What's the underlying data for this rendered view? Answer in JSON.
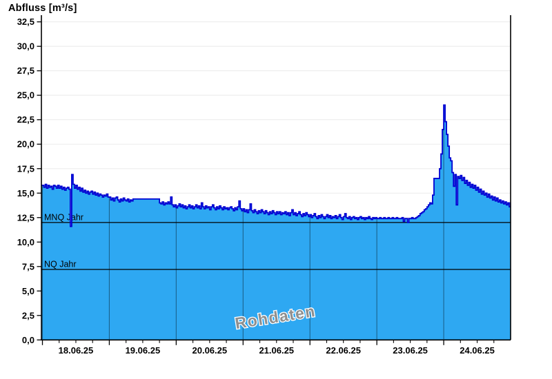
{
  "chart": {
    "title": "Abfluss [m³/s]",
    "watermark": "Rohdaten"
  },
  "colors": {
    "area_fill": "#2ea8f2",
    "curve_line": "#0000d2",
    "grid_line": "#ececec",
    "day_line": "rgba(0,0,0,0.42)",
    "axis": "#000000",
    "ref_line": "#000000",
    "watermark_fill": "#8f8f8f",
    "watermark_stroke": "#ffffff",
    "text": "#000000"
  },
  "chart_data": {
    "type": "area",
    "title": "Abfluss [m³/s]",
    "ylabel": "Abfluss [m³/s]",
    "xlabel": "",
    "grid": "horizontal",
    "legend": "none",
    "ylim": [
      0,
      33
    ],
    "x_range_hours": [
      -0.5,
      169
    ],
    "x_day_width_hours": 24,
    "x_tick_labels": [
      "18.06.25",
      "19.06.25",
      "20.06.25",
      "21.06.25",
      "22.06.25",
      "23.06.25",
      "24.06.25"
    ],
    "y_tick_values": [
      0,
      2.5,
      5,
      7.5,
      10,
      12.5,
      15,
      17.5,
      20,
      22.5,
      25,
      27.5,
      30,
      32.5
    ],
    "y_tick_labels": [
      "0,0",
      "2,5",
      "5,0",
      "7,5",
      "10,0",
      "12,5",
      "15,0",
      "17,5",
      "20,0",
      "22,5",
      "25,0",
      "27,5",
      "30,0",
      "32,5"
    ],
    "reference_lines": [
      {
        "label": "MNQ Jahr",
        "value": 12.0
      },
      {
        "label": "NQ Jahr",
        "value": 7.2
      }
    ],
    "series": {
      "name": "Abfluss Rohdaten",
      "unit": "m³/s",
      "t0_hours": -0.5,
      "dt_hours": 0.5,
      "values": [
        15.8,
        15.8,
        15.6,
        15.9,
        15.5,
        15.8,
        15.6,
        15.7,
        15.4,
        15.8,
        15.7,
        15.5,
        15.8,
        15.5,
        15.7,
        15.4,
        15.6,
        15.3,
        15.5,
        15.6,
        15.4,
        11.6,
        16.9,
        15.9,
        15.5,
        15.8,
        15.4,
        15.6,
        15.2,
        15.5,
        15.1,
        15.3,
        15.0,
        15.2,
        14.9,
        15.1,
        15.2,
        14.9,
        15.1,
        14.8,
        15.0,
        14.7,
        14.9,
        14.8,
        14.6,
        14.8,
        14.7,
        14.9,
        14.6,
        14.6,
        14.3,
        14.5,
        14.2,
        14.5,
        14.6,
        14.3,
        14.1,
        14.4,
        14.2,
        14.5,
        14.3,
        14.2,
        14.4,
        14.1,
        14.3,
        14.2,
        14.4,
        14.4,
        14.4,
        14.4,
        14.4,
        14.4,
        14.4,
        14.4,
        14.4,
        14.4,
        14.4,
        14.4,
        14.4,
        14.4,
        14.4,
        14.4,
        14.4,
        14.4,
        14.4,
        14.0,
        13.9,
        14.1,
        13.8,
        14.0,
        13.9,
        14.1,
        13.9,
        14.6,
        13.8,
        13.6,
        13.8,
        13.5,
        13.7,
        13.9,
        13.6,
        13.8,
        13.5,
        13.7,
        13.4,
        13.6,
        13.8,
        13.5,
        13.7,
        13.4,
        13.6,
        13.8,
        13.5,
        13.7,
        13.4,
        14.0,
        13.6,
        13.4,
        13.7,
        13.5,
        13.6,
        13.3,
        13.6,
        13.8,
        13.5,
        13.3,
        13.6,
        13.4,
        13.7,
        13.5,
        13.3,
        13.6,
        13.4,
        13.5,
        13.3,
        13.5,
        13.6,
        13.4,
        13.2,
        13.5,
        13.3,
        13.6,
        14.2,
        13.4,
        13.2,
        13.4,
        13.1,
        13.3,
        13.0,
        13.3,
        13.9,
        13.2,
        13.0,
        13.3,
        13.1,
        12.9,
        13.2,
        13.0,
        13.3,
        13.1,
        12.9,
        13.2,
        13.0,
        12.8,
        13.1,
        12.9,
        13.2,
        13.0,
        12.8,
        13.1,
        12.9,
        13.1,
        12.8,
        13.0,
        12.9,
        13.1,
        12.8,
        13.0,
        12.7,
        13.0,
        13.3,
        12.8,
        13.0,
        12.7,
        12.9,
        13.1,
        12.8,
        12.6,
        12.9,
        12.7,
        13.0,
        12.8,
        12.6,
        12.8,
        12.5,
        12.7,
        12.9,
        12.6,
        12.4,
        12.7,
        12.5,
        12.8,
        12.6,
        12.4,
        12.6,
        12.8,
        12.5,
        12.7,
        12.4,
        12.6,
        12.5,
        12.7,
        12.4,
        12.6,
        12.8,
        12.5,
        12.3,
        12.6,
        12.9,
        12.5,
        12.4,
        12.6,
        12.3,
        12.5,
        12.6,
        12.4,
        12.5,
        12.3,
        12.5,
        12.6,
        12.4,
        12.5,
        12.3,
        12.5,
        12.4,
        12.6,
        12.4,
        12.3,
        12.5,
        12.4,
        12.5,
        12.4,
        12.4,
        12.5,
        12.4,
        12.4,
        12.5,
        12.4,
        12.4,
        12.5,
        12.4,
        12.4,
        12.5,
        12.4,
        12.4,
        12.5,
        12.4,
        12.4,
        12.4,
        12.5,
        12.1,
        12.4,
        12.4,
        12.0,
        12.4,
        12.4,
        12.5,
        12.4,
        12.4,
        12.5,
        12.6,
        12.7,
        12.9,
        13.0,
        13.1,
        13.3,
        13.4,
        13.6,
        13.8,
        14.0,
        13.9,
        14.8,
        16.5,
        16.5,
        16.5,
        16.5,
        17.5,
        19.0,
        21.5,
        24.0,
        22.3,
        21.0,
        19.8,
        18.6,
        18.3,
        17.1,
        15.7,
        16.9,
        13.8,
        16.7,
        16.5,
        16.8,
        16.3,
        16.6,
        16.0,
        16.3,
        15.8,
        16.1,
        15.6,
        15.9,
        15.5,
        15.8,
        15.3,
        15.6,
        15.1,
        15.4,
        14.9,
        15.2,
        14.8,
        15.0,
        14.6,
        14.9,
        14.5,
        14.7,
        14.3,
        14.6,
        14.2,
        14.5,
        14.1,
        14.3,
        14.0,
        14.2,
        13.9,
        14.1,
        13.8,
        14.0,
        13.6,
        14.0,
        14.0
      ]
    }
  }
}
